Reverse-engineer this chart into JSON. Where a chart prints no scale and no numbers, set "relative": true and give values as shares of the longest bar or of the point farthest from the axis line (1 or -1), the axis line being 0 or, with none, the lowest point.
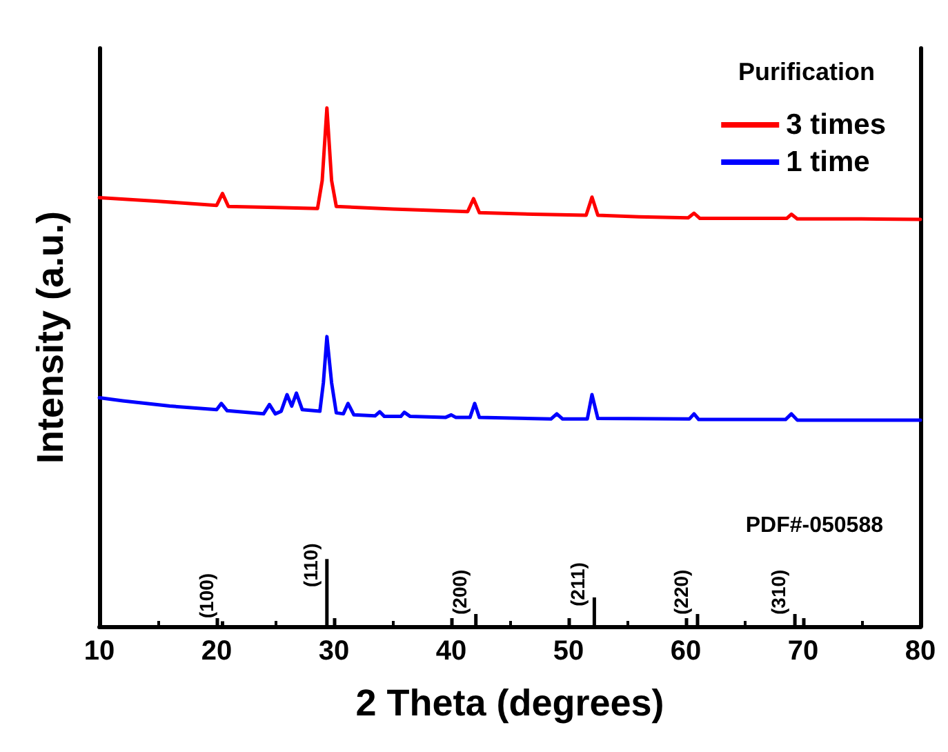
{
  "chart_data": {
    "type": "line",
    "xlabel": "2 Theta (degrees)",
    "ylabel": "Intensity (a.u.)",
    "legend_title": "Purification",
    "legend": "top right",
    "relative": true,
    "grid": false,
    "marker": "none",
    "line_style": "solid",
    "xlim": [
      10,
      80
    ],
    "xticks": [
      10,
      20,
      30,
      40,
      50,
      60,
      70,
      80
    ],
    "annotations": [
      "PDF#-050588",
      {
        "text": "(100)",
        "x": 20.5,
        "y": 0.01
      },
      {
        "text": "(110)",
        "x": 29.4,
        "y": 0.13
      },
      {
        "text": "(200)",
        "x": 42.1,
        "y": 0.024
      },
      {
        "text": "(211)",
        "x": 52.2,
        "y": 0.056
      },
      {
        "text": "(220)",
        "x": 61.0,
        "y": 0.024
      },
      {
        "text": "(310)",
        "x": 69.3,
        "y": 0.024
      }
    ],
    "series": [
      {
        "name": "3 times",
        "color": "#ff0000",
        "x": [
          10,
          15,
          20,
          20.5,
          21,
          25,
          28.6,
          29,
          29.4,
          29.8,
          30.2,
          35,
          41.4,
          41.9,
          42.4,
          47,
          51.5,
          52,
          52.5,
          56,
          60.2,
          60.7,
          61.2,
          68.6,
          69,
          69.5,
          75,
          80
        ],
        "values": [
          0.827,
          0.82,
          0.812,
          0.835,
          0.81,
          0.808,
          0.806,
          0.86,
          1,
          0.86,
          0.81,
          0.805,
          0.8,
          0.825,
          0.798,
          0.795,
          0.793,
          0.828,
          0.793,
          0.79,
          0.788,
          0.797,
          0.787,
          0.787,
          0.795,
          0.786,
          0.786,
          0.785
        ]
      },
      {
        "name": "1 time",
        "color": "#0000ff",
        "x": [
          10,
          12,
          16,
          20,
          20.4,
          20.9,
          24,
          24.5,
          25,
          25.5,
          26,
          26.4,
          26.8,
          27.3,
          28.8,
          29.1,
          29.4,
          29.8,
          30.2,
          30.8,
          31.2,
          31.7,
          33.5,
          33.9,
          34.3,
          35.7,
          36,
          36.5,
          39.5,
          40,
          40.4,
          41.6,
          42,
          42.4,
          48.5,
          49,
          49.5,
          51.6,
          52,
          52.5,
          60.3,
          60.7,
          61.1,
          68.5,
          69,
          69.5,
          80
        ],
        "values": [
          0.441,
          0.435,
          0.425,
          0.418,
          0.43,
          0.416,
          0.41,
          0.428,
          0.41,
          0.415,
          0.447,
          0.425,
          0.45,
          0.418,
          0.415,
          0.47,
          0.559,
          0.47,
          0.412,
          0.41,
          0.43,
          0.408,
          0.406,
          0.414,
          0.405,
          0.405,
          0.413,
          0.405,
          0.403,
          0.408,
          0.403,
          0.403,
          0.43,
          0.403,
          0.4,
          0.41,
          0.4,
          0.4,
          0.447,
          0.401,
          0.4,
          0.41,
          0.399,
          0.399,
          0.41,
          0.398,
          0.398
        ]
      },
      {
        "type": "bar",
        "color": "#000000",
        "x": [
          20.5,
          29.4,
          42.1,
          52.2,
          61.0,
          69.3
        ],
        "values": [
          0.01,
          0.13,
          0.024,
          0.056,
          0.024,
          0.024
        ]
      }
    ]
  }
}
